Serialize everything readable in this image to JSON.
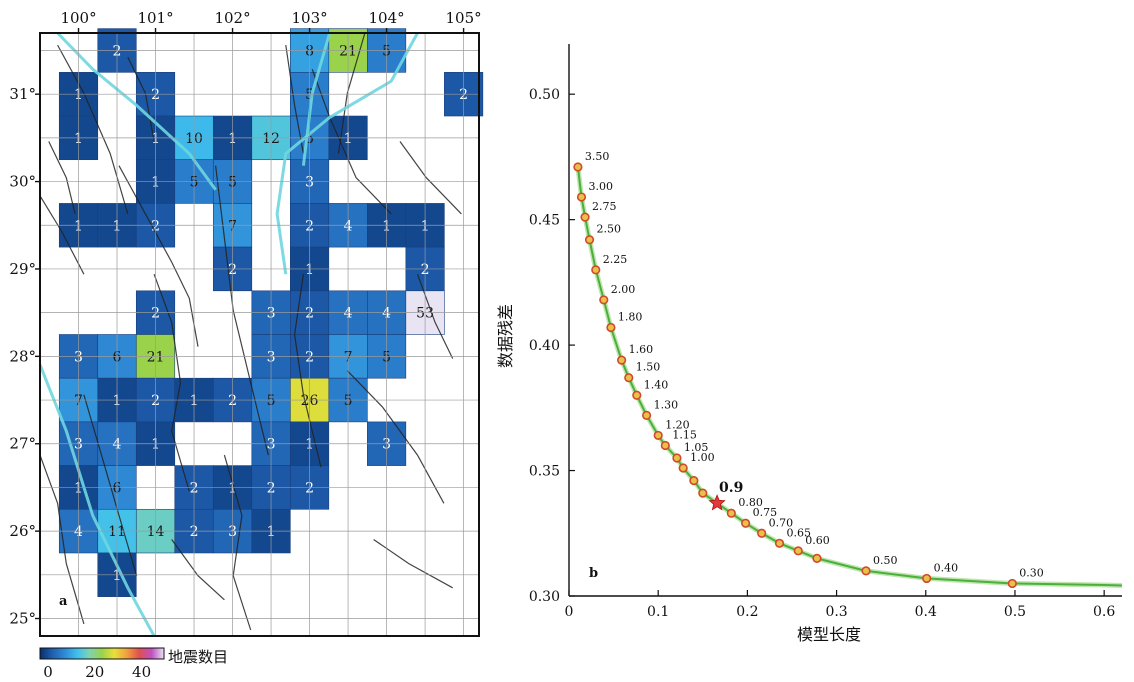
{
  "chart_data": [
    {
      "panel_label": "a",
      "type": "heatmap",
      "x_tick_labels": [
        "100°",
        "101°",
        "102°",
        "103°",
        "104°",
        "105°"
      ],
      "y_tick_labels": [
        "31°",
        "30°",
        "29°",
        "28°",
        "27°",
        "26°",
        "25°"
      ],
      "x_ticks": [
        100,
        101,
        102,
        103,
        104,
        105
      ],
      "y_ticks": [
        31,
        30,
        29,
        28,
        27,
        26,
        25
      ],
      "xlim": [
        99.5,
        105.2
      ],
      "ylim": [
        24.8,
        31.7
      ],
      "cell_size_deg": 0.5,
      "colorbar": {
        "title": "地震数目",
        "tick_labels": [
          "0",
          "20",
          "40"
        ],
        "range": [
          0,
          53
        ],
        "stops": [
          "#08306b",
          "#1f5fb0",
          "#2f8ad6",
          "#3fc0ee",
          "#7fd3b0",
          "#9ad34a",
          "#e8e03a",
          "#f0a040",
          "#e05050",
          "#c050c0",
          "#e8e4f4"
        ]
      },
      "cells": [
        {
          "lon": 100.5,
          "lat": 31.5,
          "count": 2
        },
        {
          "lon": 103.0,
          "lat": 31.5,
          "count": 8
        },
        {
          "lon": 103.5,
          "lat": 31.5,
          "count": 21
        },
        {
          "lon": 104.0,
          "lat": 31.5,
          "count": 5
        },
        {
          "lon": 100.0,
          "lat": 31.0,
          "count": 1
        },
        {
          "lon": 101.0,
          "lat": 31.0,
          "count": 2
        },
        {
          "lon": 103.0,
          "lat": 31.0,
          "count": 5
        },
        {
          "lon": 105.0,
          "lat": 31.0,
          "count": 2
        },
        {
          "lon": 100.0,
          "lat": 30.5,
          "count": 1
        },
        {
          "lon": 101.0,
          "lat": 30.5,
          "count": 1
        },
        {
          "lon": 101.5,
          "lat": 30.5,
          "count": 10
        },
        {
          "lon": 102.0,
          "lat": 30.5,
          "count": 1
        },
        {
          "lon": 102.5,
          "lat": 30.5,
          "count": 12
        },
        {
          "lon": 103.0,
          "lat": 30.5,
          "count": 5
        },
        {
          "lon": 103.5,
          "lat": 30.5,
          "count": 1
        },
        {
          "lon": 101.0,
          "lat": 30.0,
          "count": 1
        },
        {
          "lon": 101.5,
          "lat": 30.0,
          "count": 5
        },
        {
          "lon": 102.0,
          "lat": 30.0,
          "count": 5
        },
        {
          "lon": 103.0,
          "lat": 30.0,
          "count": 3
        },
        {
          "lon": 100.0,
          "lat": 29.5,
          "count": 1
        },
        {
          "lon": 100.5,
          "lat": 29.5,
          "count": 1
        },
        {
          "lon": 101.0,
          "lat": 29.5,
          "count": 2
        },
        {
          "lon": 102.0,
          "lat": 29.5,
          "count": 7
        },
        {
          "lon": 103.0,
          "lat": 29.5,
          "count": 2
        },
        {
          "lon": 103.5,
          "lat": 29.5,
          "count": 4
        },
        {
          "lon": 104.0,
          "lat": 29.5,
          "count": 1
        },
        {
          "lon": 104.5,
          "lat": 29.5,
          "count": 1
        },
        {
          "lon": 102.0,
          "lat": 29.0,
          "count": 2
        },
        {
          "lon": 103.0,
          "lat": 29.0,
          "count": 1
        },
        {
          "lon": 104.5,
          "lat": 29.0,
          "count": 2
        },
        {
          "lon": 101.0,
          "lat": 28.5,
          "count": 2
        },
        {
          "lon": 102.5,
          "lat": 28.5,
          "count": 3
        },
        {
          "lon": 103.0,
          "lat": 28.5,
          "count": 2
        },
        {
          "lon": 103.5,
          "lat": 28.5,
          "count": 4
        },
        {
          "lon": 104.0,
          "lat": 28.5,
          "count": 4
        },
        {
          "lon": 104.5,
          "lat": 28.5,
          "count": 53
        },
        {
          "lon": 100.0,
          "lat": 28.0,
          "count": 3
        },
        {
          "lon": 100.5,
          "lat": 28.0,
          "count": 6
        },
        {
          "lon": 101.0,
          "lat": 28.0,
          "count": 21
        },
        {
          "lon": 102.5,
          "lat": 28.0,
          "count": 3
        },
        {
          "lon": 103.0,
          "lat": 28.0,
          "count": 2
        },
        {
          "lon": 103.5,
          "lat": 28.0,
          "count": 7
        },
        {
          "lon": 104.0,
          "lat": 28.0,
          "count": 5
        },
        {
          "lon": 100.0,
          "lat": 27.5,
          "count": 7
        },
        {
          "lon": 100.5,
          "lat": 27.5,
          "count": 1
        },
        {
          "lon": 101.0,
          "lat": 27.5,
          "count": 2
        },
        {
          "lon": 101.5,
          "lat": 27.5,
          "count": 1
        },
        {
          "lon": 102.0,
          "lat": 27.5,
          "count": 2
        },
        {
          "lon": 102.5,
          "lat": 27.5,
          "count": 5
        },
        {
          "lon": 103.0,
          "lat": 27.5,
          "count": 26
        },
        {
          "lon": 103.5,
          "lat": 27.5,
          "count": 5
        },
        {
          "lon": 100.0,
          "lat": 27.0,
          "count": 3
        },
        {
          "lon": 100.5,
          "lat": 27.0,
          "count": 4
        },
        {
          "lon": 101.0,
          "lat": 27.0,
          "count": 1
        },
        {
          "lon": 102.5,
          "lat": 27.0,
          "count": 3
        },
        {
          "lon": 103.0,
          "lat": 27.0,
          "count": 1
        },
        {
          "lon": 104.0,
          "lat": 27.0,
          "count": 3
        },
        {
          "lon": 100.0,
          "lat": 26.5,
          "count": 1
        },
        {
          "lon": 100.5,
          "lat": 26.5,
          "count": 6
        },
        {
          "lon": 101.5,
          "lat": 26.5,
          "count": 2
        },
        {
          "lon": 102.0,
          "lat": 26.5,
          "count": 1
        },
        {
          "lon": 102.5,
          "lat": 26.5,
          "count": 2
        },
        {
          "lon": 103.0,
          "lat": 26.5,
          "count": 2
        },
        {
          "lon": 100.0,
          "lat": 26.0,
          "count": 4
        },
        {
          "lon": 100.5,
          "lat": 26.0,
          "count": 11
        },
        {
          "lon": 101.0,
          "lat": 26.0,
          "count": 14
        },
        {
          "lon": 101.5,
          "lat": 26.0,
          "count": 2
        },
        {
          "lon": 102.0,
          "lat": 26.0,
          "count": 3
        },
        {
          "lon": 102.5,
          "lat": 26.0,
          "count": 1
        },
        {
          "lon": 100.5,
          "lat": 25.5,
          "count": 1
        }
      ]
    },
    {
      "panel_label": "b",
      "type": "line",
      "xlabel": "模型长度",
      "ylabel": "数据残差",
      "xlim": [
        0,
        0.62
      ],
      "ylim": [
        0.3,
        0.52
      ],
      "x_ticks": [
        0,
        0.1,
        0.2,
        0.3,
        0.4,
        0.5,
        0.6
      ],
      "x_tick_labels": [
        "0",
        "0.1",
        "0.2",
        "0.3",
        "0.4",
        "0.5",
        "0.6"
      ],
      "y_ticks": [
        0.3,
        0.35,
        0.4,
        0.45,
        0.5
      ],
      "y_tick_labels": [
        "0.30",
        "0.35",
        "0.40",
        "0.45",
        "0.50"
      ],
      "line_color": "#4caf3c",
      "marker_color": "#d04a2a",
      "points": [
        {
          "label": "3.50",
          "x": 0.01,
          "y": 0.471
        },
        {
          "label": "3.00",
          "x": 0.014,
          "y": 0.459
        },
        {
          "label": "2.75",
          "x": 0.018,
          "y": 0.451
        },
        {
          "label": "2.50",
          "x": 0.023,
          "y": 0.442
        },
        {
          "label": "2.25",
          "x": 0.03,
          "y": 0.43
        },
        {
          "label": "2.00",
          "x": 0.039,
          "y": 0.418
        },
        {
          "label": "1.80",
          "x": 0.047,
          "y": 0.407
        },
        {
          "label": "1.60",
          "x": 0.059,
          "y": 0.394
        },
        {
          "label": "1.50",
          "x": 0.067,
          "y": 0.387
        },
        {
          "label": "1.40",
          "x": 0.076,
          "y": 0.38
        },
        {
          "label": "1.30",
          "x": 0.087,
          "y": 0.372
        },
        {
          "label": "1.20",
          "x": 0.1,
          "y": 0.364
        },
        {
          "label": "1.15",
          "x": 0.108,
          "y": 0.36
        },
        {
          "label": "1.05",
          "x": 0.121,
          "y": 0.355
        },
        {
          "label": "1.00",
          "x": 0.128,
          "y": 0.351
        },
        {
          "label": "",
          "x": 0.14,
          "y": 0.346
        },
        {
          "label": "",
          "x": 0.15,
          "y": 0.341
        },
        {
          "label": "0.80",
          "x": 0.182,
          "y": 0.333
        },
        {
          "label": "0.75",
          "x": 0.198,
          "y": 0.329
        },
        {
          "label": "0.70",
          "x": 0.216,
          "y": 0.325
        },
        {
          "label": "0.65",
          "x": 0.236,
          "y": 0.321
        },
        {
          "label": "0.60",
          "x": 0.257,
          "y": 0.318
        },
        {
          "label": "",
          "x": 0.278,
          "y": 0.315
        },
        {
          "label": "0.50",
          "x": 0.333,
          "y": 0.31
        },
        {
          "label": "0.40",
          "x": 0.401,
          "y": 0.307
        },
        {
          "label": "0.30",
          "x": 0.497,
          "y": 0.305
        }
      ],
      "optimal": {
        "label": "0.9",
        "x": 0.166,
        "y": 0.337
      }
    }
  ]
}
